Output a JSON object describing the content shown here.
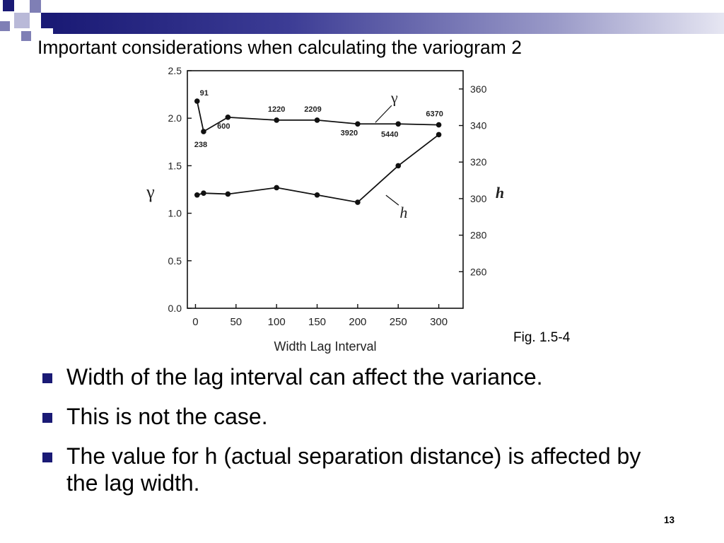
{
  "slide": {
    "title": "Important considerations when calculating the variogram 2",
    "figure_caption": "Fig. 1.5-4",
    "bullets": [
      "Width of the lag interval can affect the variance.",
      "This is not the case.",
      "The value for h (actual separation distance) is affected by the lag width."
    ],
    "page_number": "13",
    "colors": {
      "header_bar": "#1a1a75",
      "bullet": "#1a1a75"
    }
  },
  "chart_data": {
    "type": "line",
    "xlabel": "Width Lag Interval",
    "ylabel": "γ",
    "y2label": "h",
    "xlim": [
      -10,
      330
    ],
    "ylim": [
      0,
      2.5
    ],
    "y2lim": [
      240,
      370
    ],
    "xticks": [
      0,
      50,
      100,
      150,
      200,
      250,
      300
    ],
    "yticks": [
      "0.0",
      "0.5",
      "1.0",
      "1.5",
      "2.0",
      "2.5"
    ],
    "y2ticks": [
      260,
      280,
      300,
      320,
      340,
      360
    ],
    "series": [
      {
        "name": "γ",
        "axis": "left",
        "x": [
          2,
          10,
          40,
          100,
          150,
          200,
          250,
          300
        ],
        "y": [
          2.18,
          1.86,
          2.01,
          1.98,
          1.98,
          1.94,
          1.94,
          1.93
        ],
        "point_labels": [
          "91",
          "238",
          "600",
          "1220",
          "2209",
          "3920",
          "5440",
          "6370"
        ]
      },
      {
        "name": "h",
        "axis": "right",
        "x": [
          2,
          10,
          40,
          100,
          150,
          200,
          250,
          300
        ],
        "y": [
          302,
          303,
          302.5,
          306,
          302,
          298,
          318,
          335
        ]
      }
    ]
  }
}
